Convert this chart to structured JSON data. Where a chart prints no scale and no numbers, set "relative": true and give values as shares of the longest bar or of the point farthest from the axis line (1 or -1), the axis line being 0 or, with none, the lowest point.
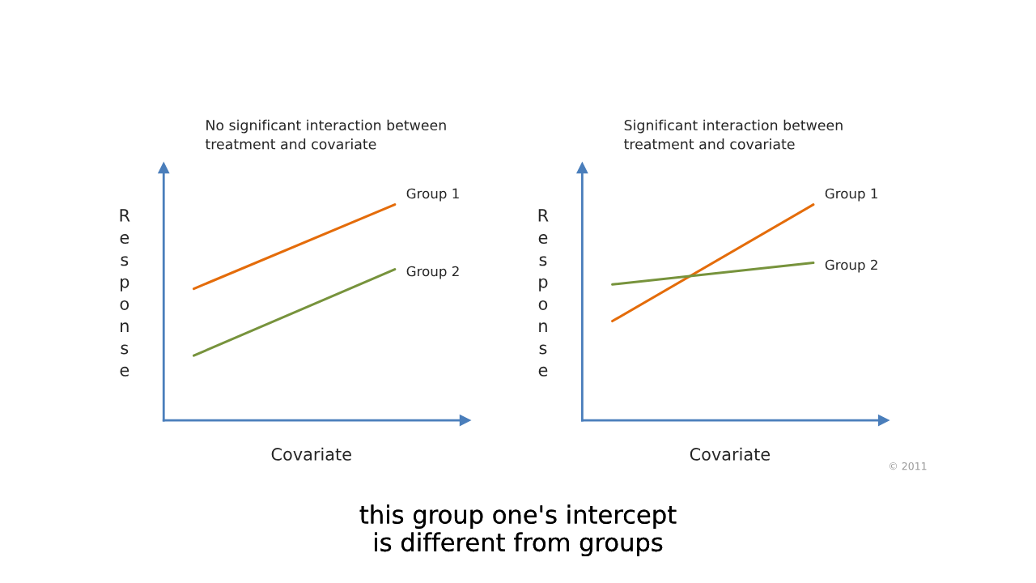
{
  "chart_data": [
    {
      "type": "line",
      "title": "No significant interaction between\ntreatment and covariate",
      "xlabel": "Covariate",
      "ylabel": "Response",
      "relative": true,
      "categories": [
        null,
        null
      ],
      "series": [
        {
          "name": "Group 1",
          "color": "#e46c0a",
          "values": [
            0.61,
            1
          ]
        },
        {
          "name": "Group 2",
          "color": "#77933c",
          "values": [
            0.3,
            0.7
          ]
        }
      ]
    },
    {
      "type": "line",
      "title": "Significant interaction between\ntreatment and covariate",
      "xlabel": "Covariate",
      "ylabel": "Response",
      "relative": true,
      "categories": [
        null,
        null
      ],
      "series": [
        {
          "name": "Group 1",
          "color": "#e46c0a",
          "values": [
            0.46,
            1
          ]
        },
        {
          "name": "Group 2",
          "color": "#77933c",
          "values": [
            0.63,
            0.73
          ]
        }
      ],
      "annotations": [
        "© 2011",
        "this group one's intercept\nis different from groups"
      ]
    }
  ]
}
